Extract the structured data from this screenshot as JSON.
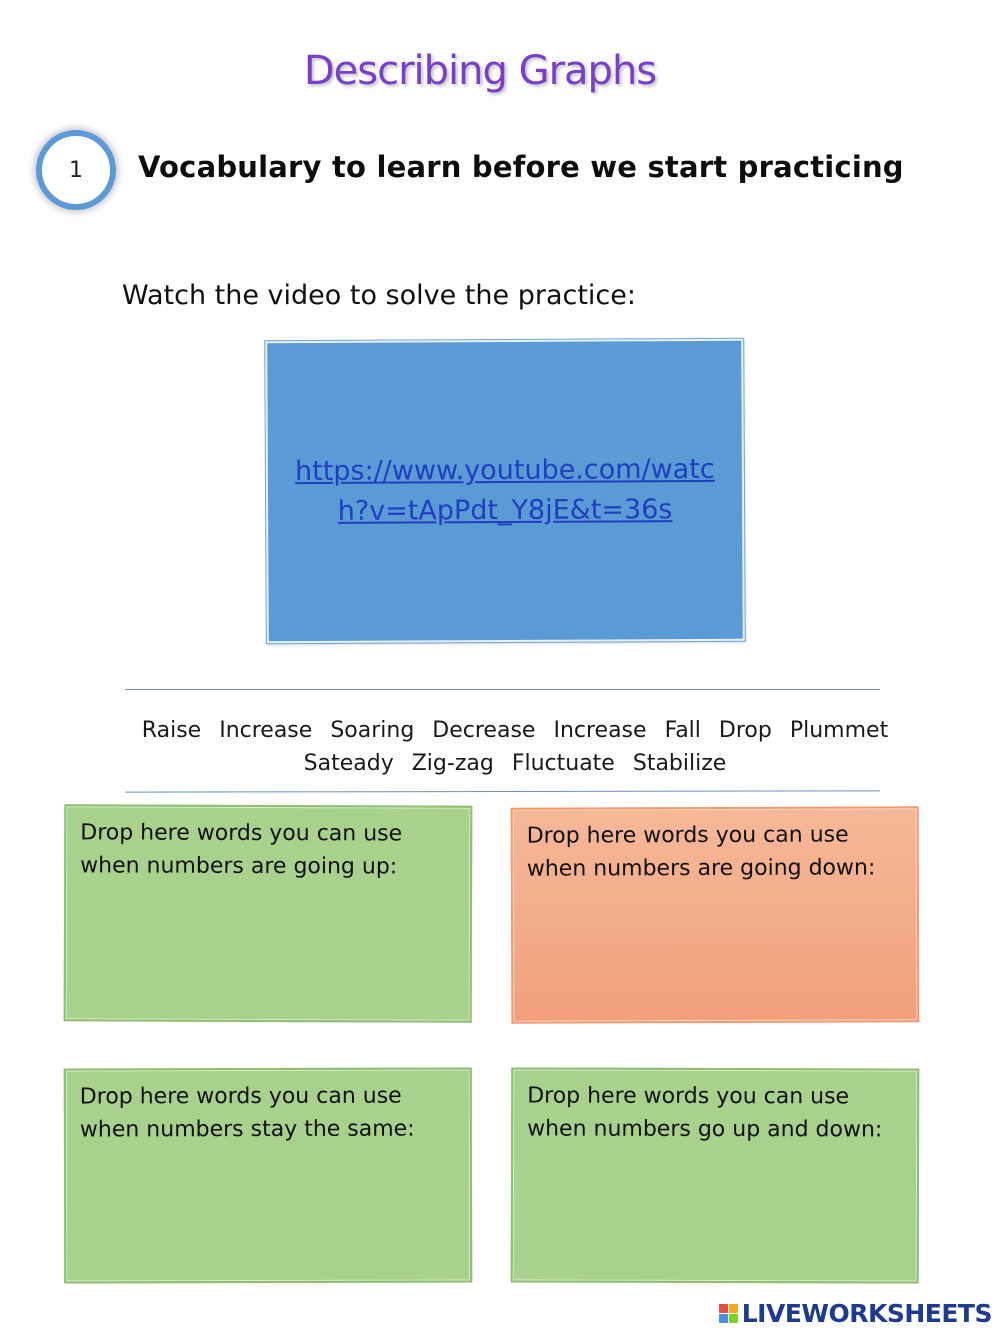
{
  "title": "Describing Graphs",
  "section": {
    "number": "1",
    "heading": "Vocabulary to learn before we start practicing"
  },
  "instruction": "Watch the video to solve the practice:",
  "video": {
    "link_text": "https://www.youtube.com/watch?v=tApPdt_Y8jE&t=36s",
    "box_color": "#5b9bd5",
    "link_color": "#1f3fbf"
  },
  "word_bank": [
    "Raise",
    "Increase",
    "Soaring",
    "Decrease",
    "Increase",
    "Fall",
    "Drop",
    "Plummet",
    "Sateady",
    "Zig-zag",
    "Fluctuate",
    "Stabilize"
  ],
  "drop_zones": {
    "going_up": "Drop here words you can use when numbers are going up:",
    "going_down": "Drop here words you can use when numbers are going down:",
    "stay_same": "Drop here words you can use when numbers stay the same:",
    "up_and_down": "Drop here words you can use when numbers go up and down:"
  },
  "colors": {
    "title": "#7a3fc7",
    "circle_border": "#5b9bd5",
    "green_box": "#a9d18e",
    "orange_box": "#f2a07a"
  },
  "brand": {
    "text": "LIVEWORKSHEETS",
    "icon": "liveworksheets-logo-icon"
  }
}
